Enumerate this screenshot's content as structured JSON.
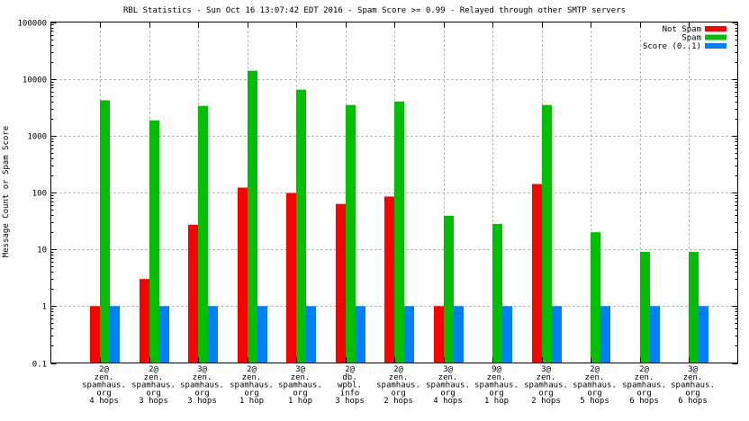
{
  "chart_data": {
    "type": "bar",
    "title": "RBL Statistics - Sun Oct 16 13:07:42 EDT 2016 - Spam Score >= 0.99 - Relayed through other SMTP servers",
    "xlabel": "",
    "ylabel": "Message Count or Spam Score",
    "yscale": "log",
    "ylim": [
      0.1,
      100000
    ],
    "yticks": [
      "0.1",
      "1",
      "10",
      "100",
      "1000",
      "10000",
      "100000"
    ],
    "grid": true,
    "legend_position": "top-right",
    "categories": [
      [
        "2@",
        "zen.",
        "spamhaus.",
        "org",
        "4 hops"
      ],
      [
        "2@",
        "zen.",
        "spamhaus.",
        "org",
        "3 hops"
      ],
      [
        "3@",
        "zen.",
        "spamhaus.",
        "org",
        "3 hops"
      ],
      [
        "2@",
        "zen.",
        "spamhaus.",
        "org",
        "1 hop"
      ],
      [
        "3@",
        "zen.",
        "spamhaus.",
        "org",
        "1 hop"
      ],
      [
        "2@",
        "db.",
        "wpbl.",
        "info",
        "3 hops"
      ],
      [
        "2@",
        "zen.",
        "spamhaus.",
        "org",
        "2 hops"
      ],
      [
        "3@",
        "zen.",
        "spamhaus.",
        "org",
        "4 hops"
      ],
      [
        "9@",
        "zen.",
        "spamhaus.",
        "org",
        "1 hop"
      ],
      [
        "3@",
        "zen.",
        "spamhaus.",
        "org",
        "2 hops"
      ],
      [
        "2@",
        "zen.",
        "spamhaus.",
        "org",
        "5 hops"
      ],
      [
        "2@",
        "zen.",
        "spamhaus.",
        "org",
        "6 hops"
      ],
      [
        "3@",
        "zen.",
        "spamhaus.",
        "org",
        "6 hops"
      ]
    ],
    "series": [
      {
        "name": "Not Spam",
        "color": "#ff0000",
        "values": [
          1,
          3,
          27,
          122,
          98,
          63,
          85,
          1,
          0,
          141,
          0,
          0,
          0
        ]
      },
      {
        "name": "Spam",
        "color": "#00c000",
        "values": [
          4200,
          1860,
          3350,
          13900,
          6450,
          3470,
          4000,
          39,
          28,
          3470,
          20,
          9,
          9
        ]
      },
      {
        "name": "Score (0..1)",
        "color": "#0080ff",
        "values": [
          1,
          1,
          1,
          1,
          1,
          1,
          1,
          1,
          1,
          1,
          1,
          1,
          1
        ]
      }
    ]
  }
}
